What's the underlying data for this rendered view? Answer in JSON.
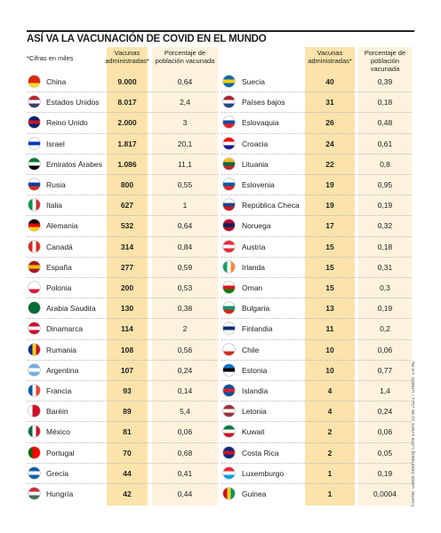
{
  "title": "ASÍ VA LA VACUNACIÓN DE COVID EN EL MUNDO",
  "note": "*Cifras en miles",
  "source": "Fuente: Datos Bloomberg Corte Enero 10 de 2021 / Gráfico: LR-AL",
  "tables": [
    {
      "headers": [
        "Vacunas administradas*",
        "Porcentaje de población vacunada"
      ],
      "rows": [
        [
          "China",
          "9.000",
          "0,64"
        ],
        [
          "Estados Unidos",
          "8.017",
          "2,4"
        ],
        [
          "Reino Unido",
          "2.000",
          "3"
        ],
        [
          "Israel",
          "1.817",
          "20,1"
        ],
        [
          "Emiratos Árabes",
          "1.086",
          "11,1"
        ],
        [
          "Rusia",
          "800",
          "0,55"
        ],
        [
          "Italia",
          "627",
          "1"
        ],
        [
          "Alemania",
          "532",
          "0,64"
        ],
        [
          "Canadá",
          "314",
          "0,84"
        ],
        [
          "España",
          "277",
          "0,59"
        ],
        [
          "Polonia",
          "200",
          "0,53"
        ],
        [
          "Arabia Saudita",
          "130",
          "0,38"
        ],
        [
          "Dinamarca",
          "114",
          "2"
        ],
        [
          "Rumania",
          "108",
          "0,56"
        ],
        [
          "Argentina",
          "107",
          "0,24"
        ],
        [
          "Francia",
          "93",
          "0,14"
        ],
        [
          "Baréin",
          "89",
          "5,4"
        ],
        [
          "México",
          "81",
          "0,06"
        ],
        [
          "Portugal",
          "70",
          "0,68"
        ],
        [
          "Grecia",
          "44",
          "0,41"
        ],
        [
          "Hungría",
          "42",
          "0,44"
        ]
      ]
    },
    {
      "headers": [
        "Vacunas administradas*",
        "Porcentaje de población vacunada"
      ],
      "rows": [
        [
          "Suecia",
          "40",
          "0,39"
        ],
        [
          "Países bajos",
          "31",
          "0,18"
        ],
        [
          "Eslovaquia",
          "26",
          "0,48"
        ],
        [
          "Croacia",
          "24",
          "0,61"
        ],
        [
          "Lituania",
          "22",
          "0,8"
        ],
        [
          "Eslovenia",
          "19",
          "0,95"
        ],
        [
          "República Checa",
          "19",
          "0,19"
        ],
        [
          "Noruega",
          "17",
          "0,32"
        ],
        [
          "Austria",
          "15",
          "0,18"
        ],
        [
          "Irlanda",
          "15",
          "0,31"
        ],
        [
          "Oman",
          "15",
          "0,3"
        ],
        [
          "Bulgaria",
          "13",
          "0,19"
        ],
        [
          "Finlandia",
          "11",
          "0,2"
        ],
        [
          "Chile",
          "10",
          "0,06"
        ],
        [
          "Estonia",
          "10",
          "0,77"
        ],
        [
          "Islandia",
          "4",
          "1,4"
        ],
        [
          "Letonia",
          "4",
          "0,24"
        ],
        [
          "Kuwait",
          "2",
          "0,06"
        ],
        [
          "Costa Rica",
          "2",
          "0,05"
        ],
        [
          "Luxemburgo",
          "1",
          "0,19"
        ],
        [
          "Guinea",
          "1",
          "0,0004"
        ]
      ]
    }
  ]
}
